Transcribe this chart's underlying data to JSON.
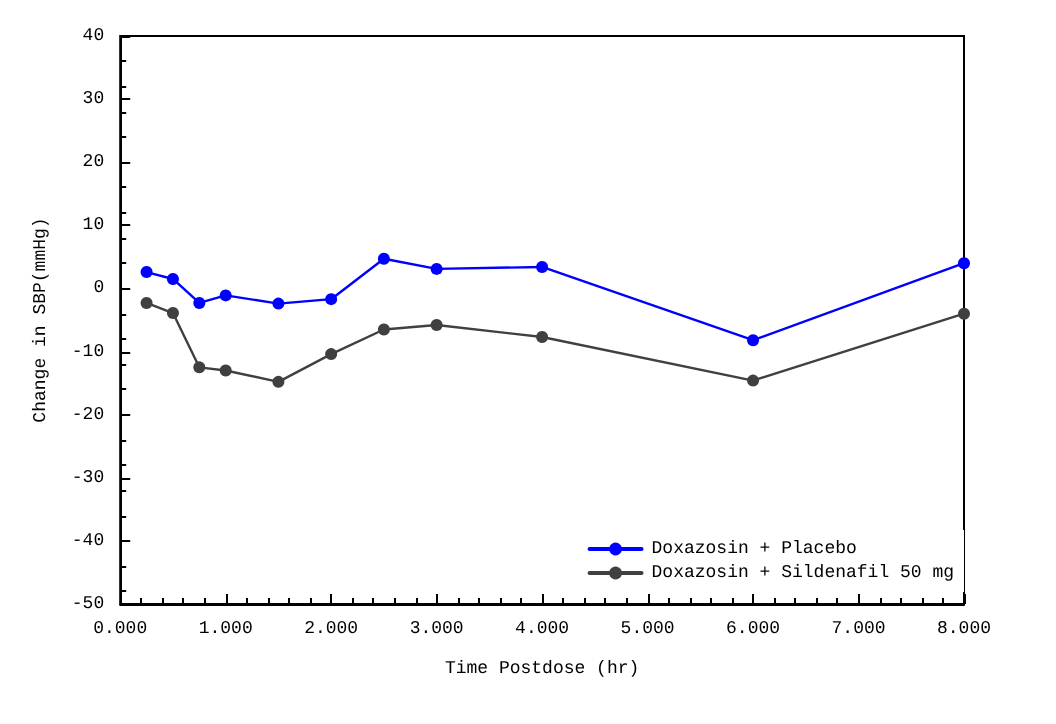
{
  "chart_data": {
    "type": "line",
    "xlabel": "Time Postdose (hr)",
    "ylabel": "Change in SBP(mmHg)",
    "xlim": [
      0,
      8
    ],
    "xticks": [
      {
        "value": 0,
        "label": "0.000"
      },
      {
        "value": 1,
        "label": "1.000"
      },
      {
        "value": 2,
        "label": "2.000"
      },
      {
        "value": 3,
        "label": "3.000"
      },
      {
        "value": 4,
        "label": "4.000"
      },
      {
        "value": 5,
        "label": "5.000"
      },
      {
        "value": 6,
        "label": "6.000"
      },
      {
        "value": 7,
        "label": "7.000"
      },
      {
        "value": 8,
        "label": "8.000"
      }
    ],
    "ylim": [
      -50,
      40
    ],
    "yticks": [
      -50,
      -40,
      -30,
      -20,
      -10,
      0,
      10,
      20,
      30,
      40
    ],
    "x": [
      0.25,
      0.5,
      0.75,
      1.0,
      1.5,
      2.0,
      2.5,
      3.0,
      4.0,
      6.0,
      8.0
    ],
    "series": [
      {
        "name": "Doxazosin + Placebo",
        "color": "#0000ff",
        "values": [
          2.6,
          1.5,
          -2.3,
          -1.1,
          -2.4,
          -1.7,
          4.7,
          3.1,
          3.4,
          -8.2,
          4.0
        ]
      },
      {
        "name": "Doxazosin + Sildenafil 50 mg",
        "color": "#404040",
        "values": [
          -2.3,
          -3.9,
          -12.5,
          -13.0,
          -14.8,
          -10.4,
          -6.5,
          -5.8,
          -7.7,
          -14.6,
          -4.0
        ]
      }
    ],
    "grid": false,
    "legend": "bottom right",
    "marker": "circle",
    "line_style": "solid"
  }
}
